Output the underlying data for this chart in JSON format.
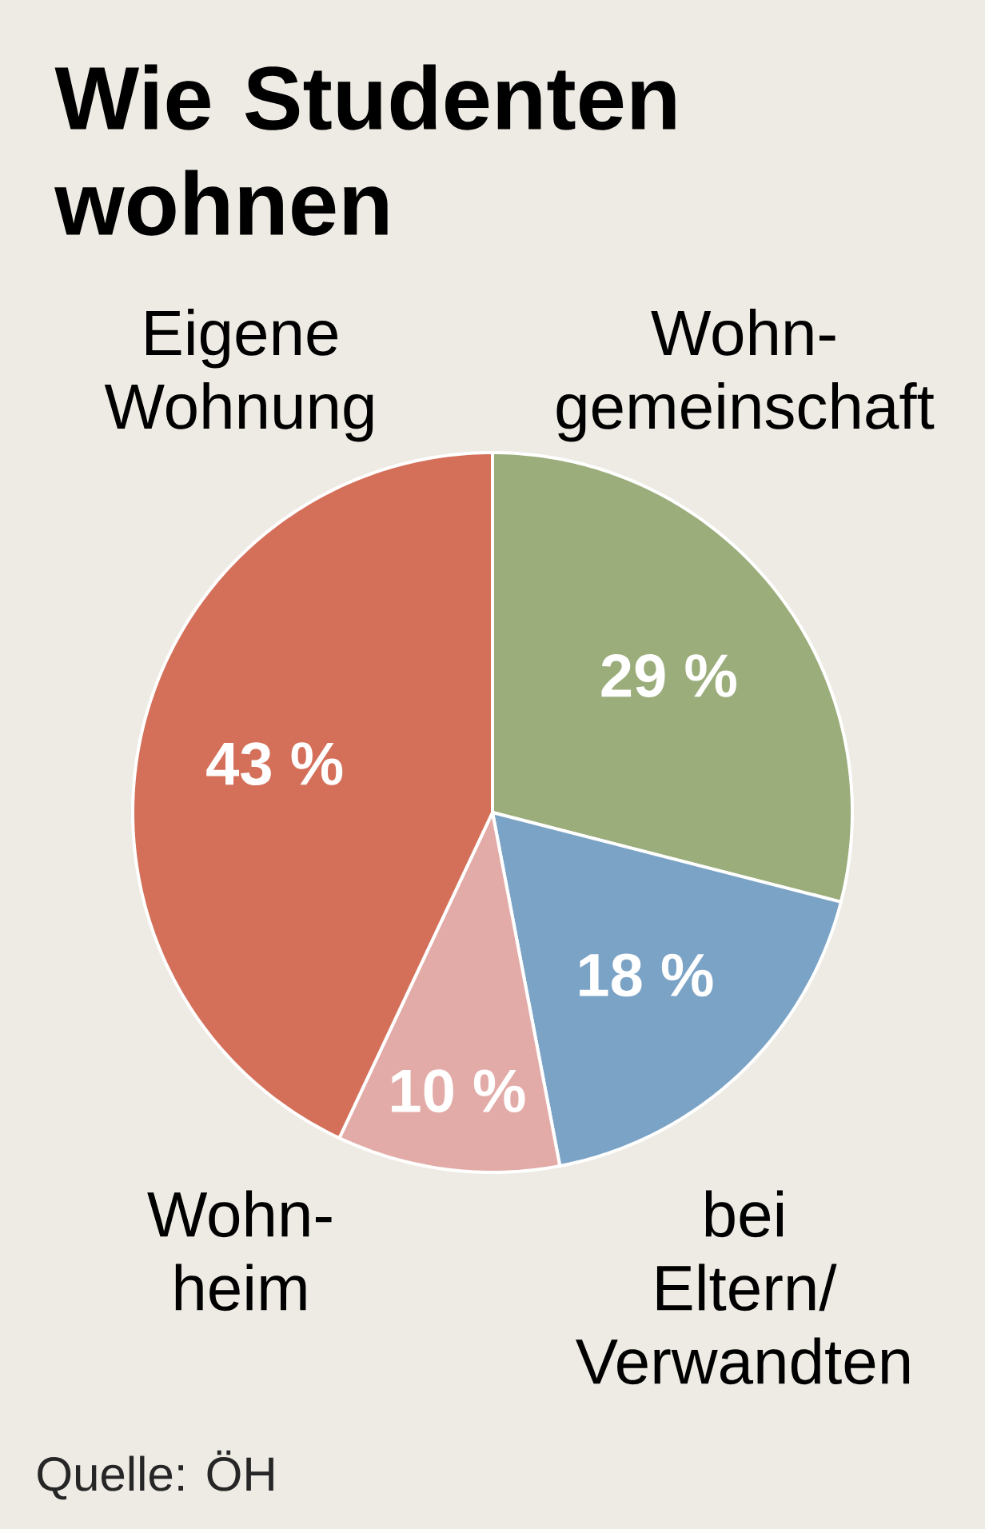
{
  "chart_data": {
    "type": "pie",
    "title": "Wie Studenten wohnen",
    "categories": [
      "Wohn-\ngemeinschaft",
      "bei\nEltern/\nVerwandten",
      "Wohn-\nheim",
      "Eigene\nWohnung"
    ],
    "values": [
      29,
      18,
      10,
      43
    ],
    "value_labels": [
      "29 %",
      "18 %",
      "10 %",
      "43 %"
    ],
    "colors": [
      "#9cad7c",
      "#7ba3c6",
      "#e3aba8",
      "#d4705a"
    ],
    "annotations": [
      "Quelle: ÖH"
    ]
  }
}
